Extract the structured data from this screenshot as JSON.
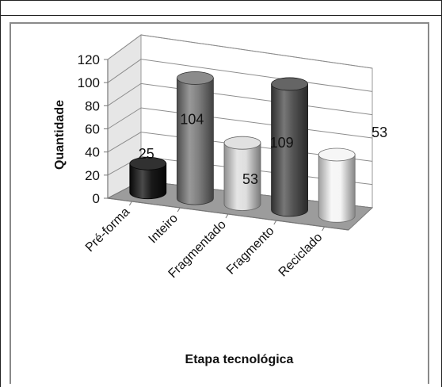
{
  "chart_data": {
    "type": "bar",
    "style": "3d-cylinder",
    "categories": [
      "Pré-forma",
      "Inteiro",
      "Fragmentado",
      "Fragmento",
      "Reciclado"
    ],
    "values": [
      25,
      104,
      53,
      109,
      53
    ],
    "data_labels": [
      "25",
      "104",
      "53",
      "109",
      "53"
    ],
    "bar_colors": [
      "#0d0d0d",
      "#777777",
      "#dcdcdc",
      "#4a4a4a",
      "#f4f4f4"
    ],
    "ylabel": "Quantidade",
    "xlabel": "Etapa tecnológica",
    "ylim": [
      0,
      120
    ],
    "yticks": [
      "0",
      "20",
      "40",
      "60",
      "80",
      "100",
      "120"
    ],
    "grid": true,
    "legend": "none"
  }
}
